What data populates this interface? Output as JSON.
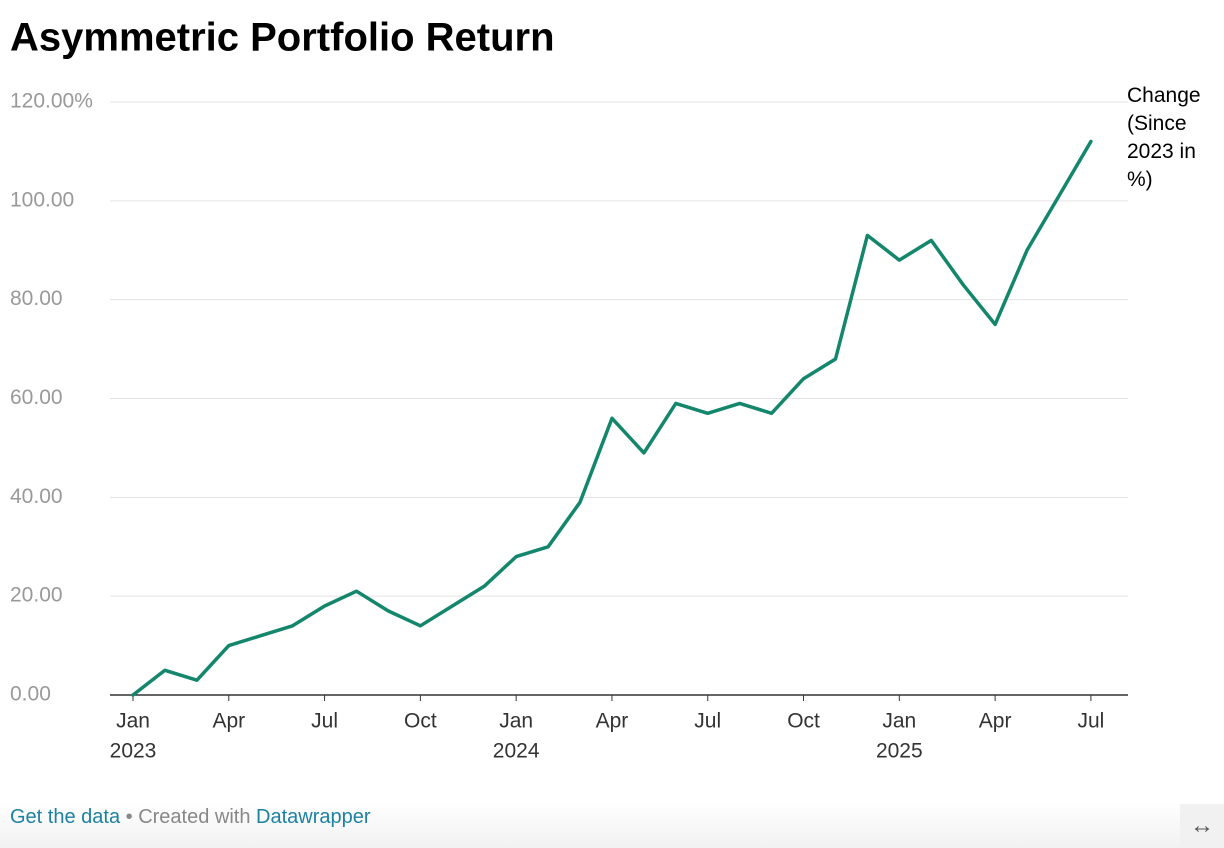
{
  "chart_data": {
    "type": "line",
    "title": "Asymmetric Portfolio Return",
    "x": [
      "2023-01",
      "2023-02",
      "2023-03",
      "2023-04",
      "2023-05",
      "2023-06",
      "2023-07",
      "2023-08",
      "2023-09",
      "2023-10",
      "2023-11",
      "2023-12",
      "2024-01",
      "2024-02",
      "2024-03",
      "2024-04",
      "2024-05",
      "2024-06",
      "2024-07",
      "2024-08",
      "2024-09",
      "2024-10",
      "2024-11",
      "2024-12",
      "2025-01",
      "2025-02",
      "2025-03",
      "2025-04",
      "2025-05",
      "2025-06",
      "2025-07"
    ],
    "series": [
      {
        "name": "Change (Since 2023 in %)",
        "color": "#13866b",
        "values": [
          0,
          5,
          3,
          10,
          12,
          14,
          18,
          21,
          17,
          14,
          18,
          22,
          28,
          30,
          39,
          56,
          49,
          59,
          57,
          59,
          57,
          64,
          68,
          93,
          88,
          92,
          83,
          75,
          90,
          101,
          112
        ]
      }
    ],
    "ylim": [
      0,
      120
    ],
    "yticks": [
      {
        "value": 0,
        "label": "0.00"
      },
      {
        "value": 20,
        "label": "20.00"
      },
      {
        "value": 40,
        "label": "40.00"
      },
      {
        "value": 60,
        "label": "60.00"
      },
      {
        "value": 80,
        "label": "80.00"
      },
      {
        "value": 100,
        "label": "100.00"
      },
      {
        "value": 120,
        "label": "120.00%"
      }
    ],
    "xticks": [
      {
        "value": "2023-01",
        "label": "Jan"
      },
      {
        "value": "2023-04",
        "label": "Apr"
      },
      {
        "value": "2023-07",
        "label": "Jul"
      },
      {
        "value": "2023-10",
        "label": "Oct"
      },
      {
        "value": "2024-01",
        "label": "Jan"
      },
      {
        "value": "2024-04",
        "label": "Apr"
      },
      {
        "value": "2024-07",
        "label": "Jul"
      },
      {
        "value": "2024-10",
        "label": "Oct"
      },
      {
        "value": "2025-01",
        "label": "Jan"
      },
      {
        "value": "2025-04",
        "label": "Apr"
      },
      {
        "value": "2025-07",
        "label": "Jul"
      }
    ],
    "xtick_years": [
      {
        "value": "2023-01",
        "label": "2023"
      },
      {
        "value": "2024-01",
        "label": "2024"
      },
      {
        "value": "2025-01",
        "label": "2025"
      }
    ],
    "grid": true,
    "footer": {
      "link": "Get the data",
      "separator": "• Created with",
      "tool": "Datawrapper"
    }
  }
}
